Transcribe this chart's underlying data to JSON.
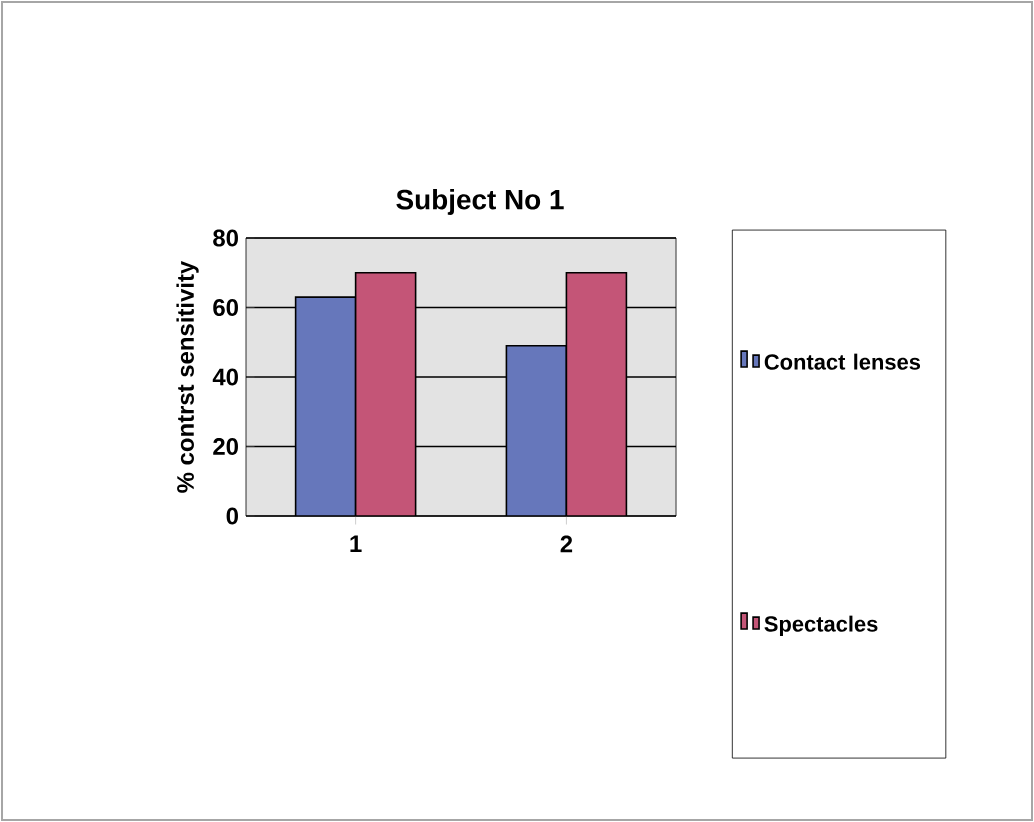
{
  "chart_data": {
    "type": "bar",
    "title": "Subject No 1",
    "ylabel": "% contrst sensitivity",
    "categories": [
      "1",
      "2"
    ],
    "series": [
      {
        "name": "Contact lenses",
        "color": "#6677bb",
        "values": [
          63,
          49
        ]
      },
      {
        "name": "Spectacles",
        "color": "#c45577",
        "values": [
          70,
          70
        ]
      }
    ],
    "ylim": [
      0,
      80
    ],
    "yticks": [
      0,
      20,
      40,
      60,
      80
    ],
    "grid": "y",
    "legend": "right"
  }
}
